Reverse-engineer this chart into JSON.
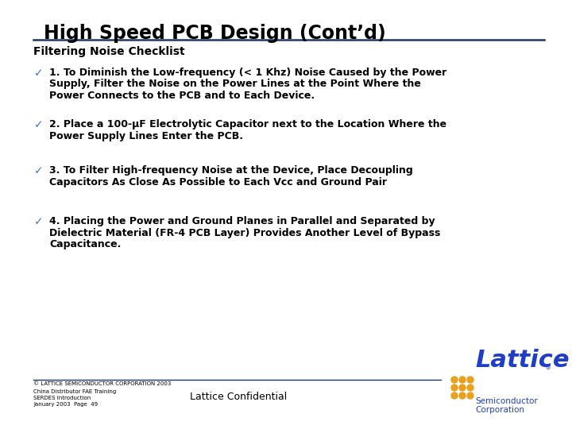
{
  "title": "High Speed PCB Design (Cont’d)",
  "subtitle": "Filtering Noise Checklist",
  "background_color": "#ffffff",
  "title_color": "#000000",
  "title_fontsize": 17,
  "subtitle_fontsize": 10,
  "body_fontsize": 9,
  "checkmark_color": "#4472C4",
  "items": [
    {
      "lines": [
        "1. To Diminish the Low-frequency (< 1 Khz) Noise Caused by the Power",
        "Supply, Filter the Noise on the Power Lines at the Point Where the",
        "Power Connects to the PCB and to Each Device."
      ]
    },
    {
      "lines": [
        "2. Place a 100-μF Electrolytic Capacitor next to the Location Where the",
        "Power Supply Lines Enter the PCB."
      ]
    },
    {
      "lines": [
        "3. To Filter High-frequency Noise at the Device, Place Decoupling",
        "Capacitors As Close As Possible to Each Vcc and Ground Pair"
      ]
    },
    {
      "lines": [
        "4. Placing the Power and Ground Planes in Parallel and Separated by",
        "Dielectric Material (FR-4 PCB Layer) Provides Another Level of Bypass",
        "Capacitance."
      ]
    }
  ],
  "footer_copyright": "© LATTICE SEMICONDUCTOR CORPORATION 2003",
  "footer_line2": "China Distributor FAE Training",
  "footer_line3": "SERDES Introduction",
  "footer_line4": "January 2003  Page  49",
  "footer_center": "Lattice Confidential",
  "title_underline_color": "#1F3864",
  "footer_line_color": "#1F3864",
  "lattice_text_color": "#1F3EC8",
  "lattice_dot_color": "#E8A020",
  "logo_dots_rows": 3,
  "logo_dots_cols": 3
}
